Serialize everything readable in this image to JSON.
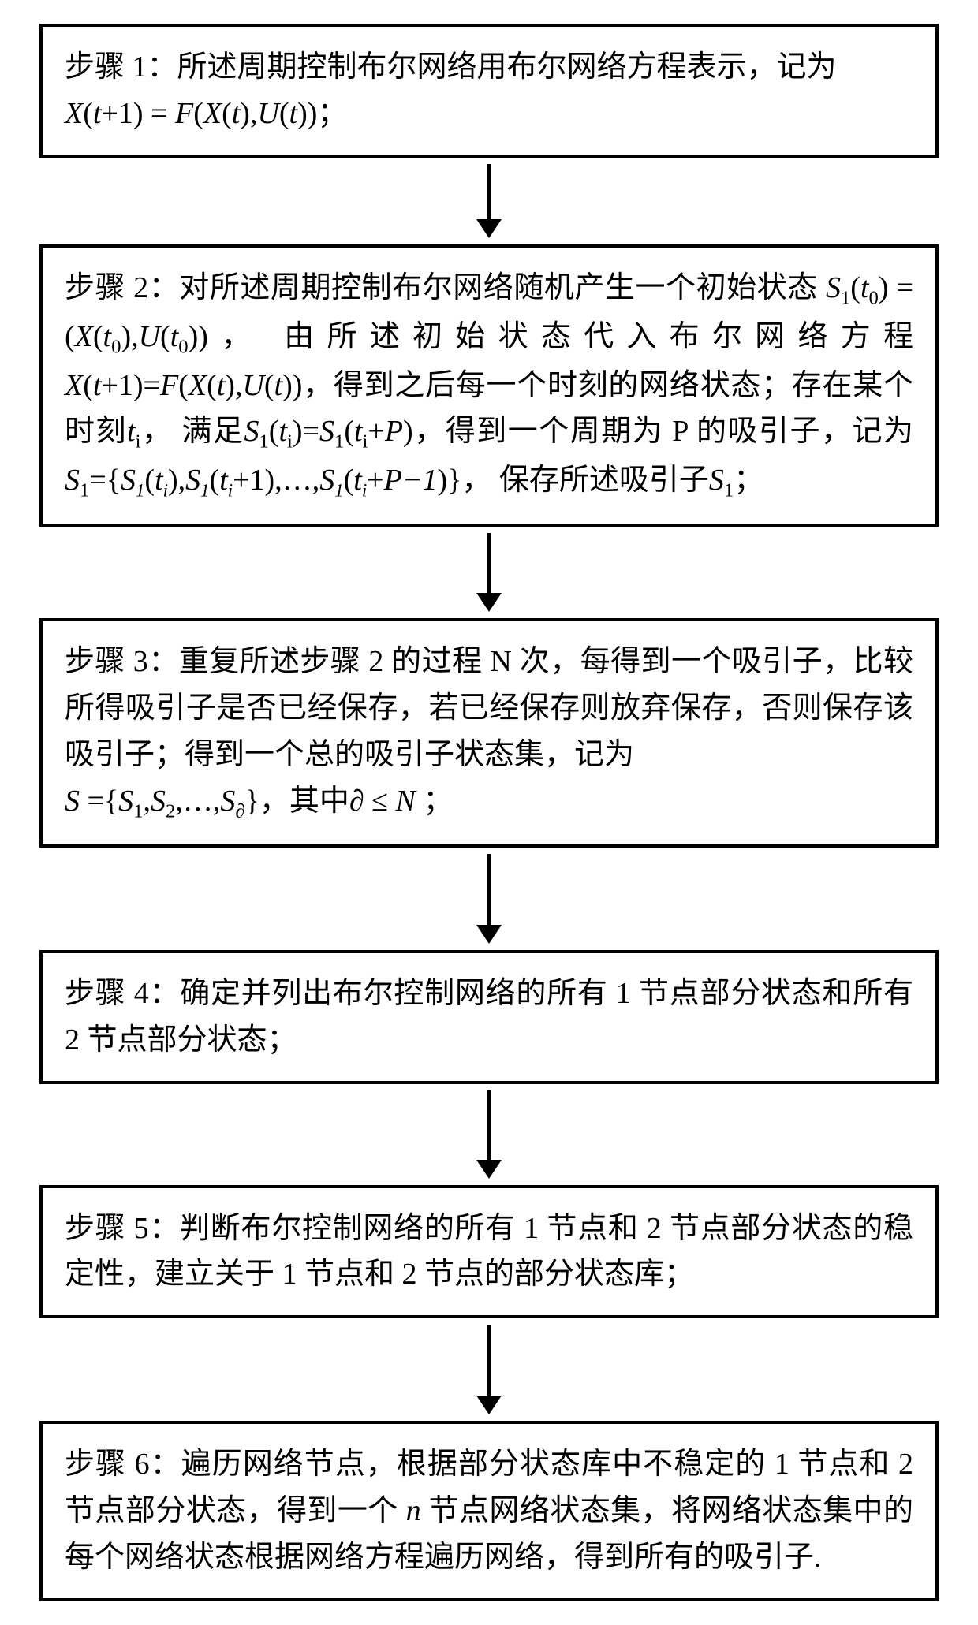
{
  "diagram": {
    "type": "flowchart",
    "direction": "vertical",
    "nodes": 6,
    "background_color": "#ffffff",
    "box_border_color": "#000000",
    "box_border_width": 4,
    "text_color": "#000000",
    "font_size": 38,
    "arrow_color": "#000000",
    "arrow_line_width": 4,
    "arrow_head_width": 32,
    "arrow_head_height": 24
  },
  "steps": [
    {
      "label": "步骤 1：",
      "pre": "所述周期控制布尔网络用布尔网络方程表示，记为",
      "formula_tokens": [
        "X",
        "(",
        "t",
        "+",
        "1",
        ")",
        "=",
        "F",
        "(",
        "X",
        "(",
        "t",
        ")",
        ",",
        "U",
        "(",
        "t",
        ")",
        ")"
      ],
      "post": "；",
      "arrow_after_height": 70
    },
    {
      "label": "步骤 2：",
      "line1_pre": "对所述周期控制布尔网络随机产生一个初始状态",
      "f_s1t0": {
        "base": "S",
        "sub": "1",
        "arg_base": "t",
        "arg_sub": "0"
      },
      "line2_mid1": "=(",
      "f_xt0": {
        "base": "X",
        "arg_base": "t",
        "arg_sub": "0"
      },
      "comma": ",",
      "f_ut0": {
        "base": "U",
        "arg_base": "t",
        "arg_sub": "0"
      },
      "paren_close": ")",
      "line2_mid2": "， 由所述初始状态代入布尔网络方程",
      "f_eq_tokens": [
        "X",
        "(",
        "t",
        "+",
        "1",
        ")",
        "=",
        "F",
        "(",
        "X",
        "(",
        "t",
        ")",
        ",",
        "U",
        "(",
        "t",
        ")",
        ")"
      ],
      "line3_mid": "，得到之后每一个时刻的网络状态；存在某个时刻",
      "f_ti": {
        "base": "t",
        "sub": "i"
      },
      "line4_mid1": "， 满足",
      "f_s1ti": {
        "base": "S",
        "sub": "1",
        "arg_base": "t",
        "arg_sub": "i"
      },
      "eq": "=",
      "f_s1tip": {
        "base": "S",
        "sub": "1",
        "arg": "t",
        "arg_sub": "i",
        "plus": "P"
      },
      "line4_mid2": "，得到一个周期为 P 的吸引子，记为",
      "f_set_pre": {
        "base": "S",
        "sub": "1"
      },
      "set_open": "={",
      "set_e1": {
        "base": "S",
        "sub": "1",
        "arg": "t",
        "arg_sub": "i"
      },
      "set_e2": {
        "base": "S",
        "sub": "1",
        "arg": "t",
        "arg_sub": "i",
        "plus": "1"
      },
      "dots": ",…,",
      "set_e3": {
        "base": "S",
        "sub": "1",
        "arg": "t",
        "arg_sub": "i",
        "plus": "P−1"
      },
      "set_close": "}",
      "line5_mid": "， 保存所述吸引子",
      "f_s1": {
        "base": "S",
        "sub": "1"
      },
      "end": "；",
      "arrow_after_height": 76
    },
    {
      "label": "步骤 3：",
      "text1": "重复所述步骤 2 的过程 N 次，每得到一个吸引子，比较所得吸引子是否已经保存，若已经保存则放弃保存，否则保存该吸引子；得到一个总的吸引子状态集，记为",
      "f_S": "S",
      "set_open": "={",
      "e1": {
        "base": "S",
        "sub": "1"
      },
      "e2": {
        "base": "S",
        "sub": "2"
      },
      "dots": ",…,",
      "e3": {
        "base": "S",
        "sub": "∂"
      },
      "set_close": "}",
      "mid": "，其中",
      "f_ineq_l": "∂",
      "f_ineq_op": "≤",
      "f_ineq_r": "N",
      "end": " ；",
      "arrow_after_height": 90
    },
    {
      "label": "步骤 4：",
      "text": "确定并列出布尔控制网络的所有 1 节点部分状态和所有 2 节点部分状态；",
      "arrow_after_height": 88
    },
    {
      "label": "步骤 5：",
      "text": "判断布尔控制网络的所有 1 节点和 2 节点部分状态的稳定性，建立关于 1 节点和 2 节点的部分状态库；",
      "arrow_after_height": 90
    },
    {
      "label": "步骤 6：",
      "text_pre": "遍历网络节点，根据部分状态库中不稳定的 1 节点和 2 节点部分状态，得到一个 ",
      "f_n": "n",
      "text_post": " 节点网络状态集，将网络状态集中的每个网络状态根据网络方程遍历网络，得到所有的吸引子."
    }
  ]
}
